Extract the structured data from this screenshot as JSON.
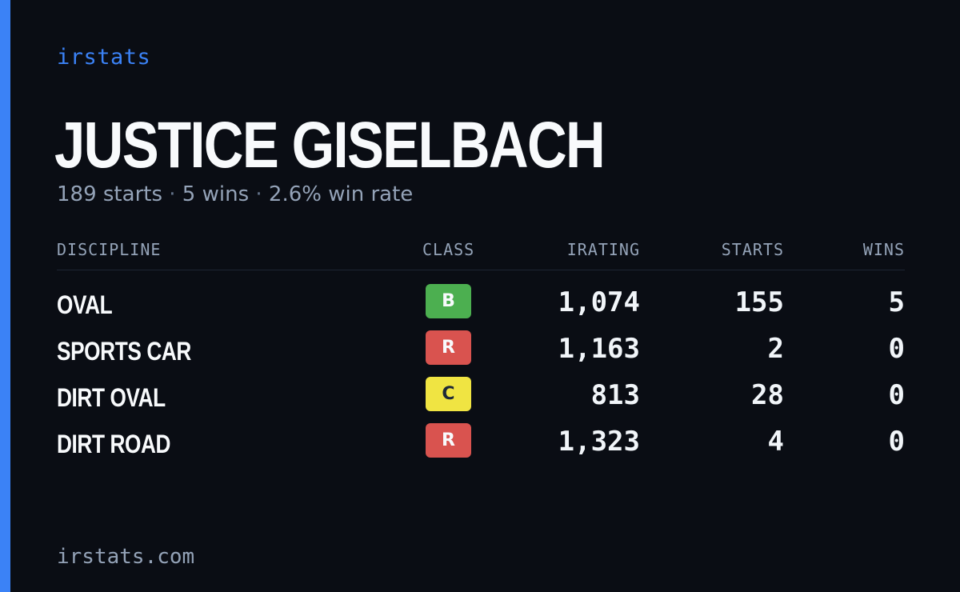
{
  "brand": "irstats",
  "driver": {
    "name": "JUSTICE GISELBACH",
    "starts_text": "189 starts",
    "wins_text": "5 wins",
    "win_rate_text": "2.6% win rate",
    "separator": "·"
  },
  "table": {
    "headers": {
      "discipline": "DISCIPLINE",
      "class": "CLASS",
      "irating": "IRATING",
      "starts": "STARTS",
      "wins": "WINS"
    },
    "rows": [
      {
        "discipline": "OVAL",
        "class": "B",
        "class_color": "#4caf50",
        "irating": "1,074",
        "starts": "155",
        "wins": "5"
      },
      {
        "discipline": "SPORTS CAR",
        "class": "R",
        "class_color": "#d9534f",
        "irating": "1,163",
        "starts": "2",
        "wins": "0"
      },
      {
        "discipline": "DIRT OVAL",
        "class": "C",
        "class_color": "#f0e442",
        "irating": "813",
        "starts": "28",
        "wins": "0"
      },
      {
        "discipline": "DIRT ROAD",
        "class": "R",
        "class_color": "#d9534f",
        "irating": "1,323",
        "starts": "4",
        "wins": "0"
      }
    ]
  },
  "footer": "irstats.com",
  "colors": {
    "accent": "#3b82f6",
    "background": "#0a0d14"
  }
}
